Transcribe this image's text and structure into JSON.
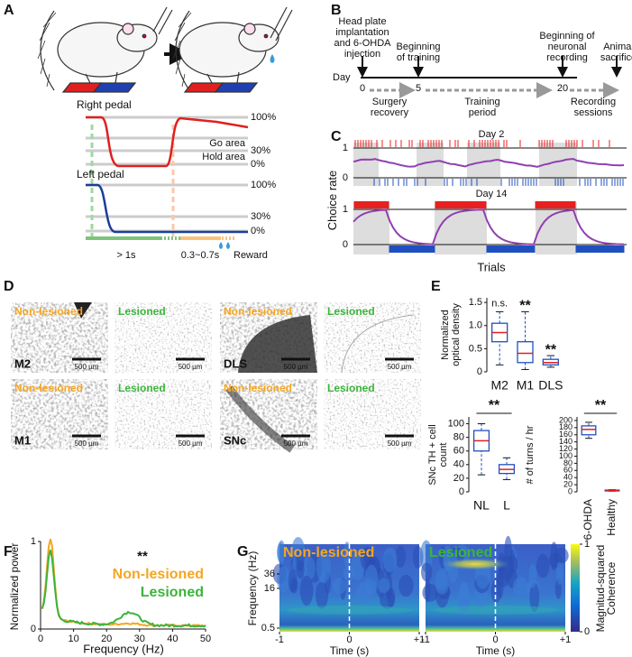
{
  "A": {
    "label": "A",
    "right_pedal": {
      "title": "Right pedal",
      "levels": [
        "100%",
        "30%",
        "0%"
      ],
      "go_area": "Go area",
      "hold_area": "Hold area"
    },
    "left_pedal": {
      "title": "Left pedal",
      "levels": [
        "100%",
        "30%",
        "0%"
      ]
    },
    "hold_time": "> 1s",
    "delay": "0.3~0.7s",
    "reward": "Reward"
  },
  "B": {
    "label": "B",
    "day": "Day",
    "days": [
      0,
      5,
      20
    ],
    "events": [
      "Head plate implantation and 6-OHDA injection",
      "Beginning of training",
      "Beginning of neuronal recording",
      "Animal sacrifice"
    ],
    "periods": [
      "Surgery recovery",
      "Training period",
      "Recording sessions"
    ]
  },
  "C": {
    "label": "C",
    "ylabel": "Choice rate",
    "xlabel": "Trials",
    "sessions": [
      {
        "title": "Day 2",
        "yticks": [
          1,
          0
        ]
      },
      {
        "title": "Day 14",
        "yticks": [
          1,
          0
        ]
      }
    ]
  },
  "D": {
    "label": "D",
    "images": [
      {
        "condition": "Non-lesioned",
        "region": "M2",
        "scale_bar": "500 µm"
      },
      {
        "condition": "Lesioned",
        "scale_bar": "500 µm"
      },
      {
        "condition": "Non-lesioned",
        "region": "DLS",
        "scale_bar": "500 µm"
      },
      {
        "condition": "Lesioned",
        "scale_bar": "500 µm"
      },
      {
        "condition": "Non-lesioned",
        "region": "M1",
        "scale_bar": "500 µm"
      },
      {
        "condition": "Lesioned",
        "scale_bar": "500 µm"
      },
      {
        "condition": "Non-lesioned",
        "region": "SNc",
        "scale_bar": "500 µm"
      },
      {
        "condition": "Lesioned",
        "scale_bar": "500 µm"
      }
    ]
  },
  "E": {
    "label": "E",
    "charts": [
      {
        "type": "box",
        "ylabel": "Normalized optical density",
        "categories": [
          "M2",
          "M1",
          "DLS"
        ],
        "annotations": [
          "n.s.",
          "**",
          "**"
        ],
        "ylim": [
          0,
          1.6
        ],
        "yticks": [
          0,
          0.5,
          {
            "value": 1,
            "label": "1.0"
          },
          1.5
        ],
        "boxes": [
          {
            "min": 0.15,
            "q1": 0.65,
            "median": 0.85,
            "q3": 1.05,
            "max": 1.3
          },
          {
            "min": 0.05,
            "q1": 0.2,
            "median": 0.4,
            "q3": 0.65,
            "max": 1.3
          },
          {
            "min": 0.1,
            "q1": 0.15,
            "median": 0.2,
            "q3": 0.27,
            "max": 0.35
          }
        ]
      },
      {
        "type": "box",
        "ylabel": "SNc TH + cell count",
        "categories": [
          "NL",
          "L"
        ],
        "significance": "**",
        "ylim": [
          0,
          110
        ],
        "yticks": [
          0,
          20,
          40,
          60,
          80,
          100
        ],
        "boxes": [
          {
            "min": 25,
            "q1": 60,
            "median": 75,
            "q3": 90,
            "max": 100
          },
          {
            "min": 18,
            "q1": 27,
            "median": 33,
            "q3": 40,
            "max": 50
          }
        ]
      },
      {
        "type": "box",
        "ylabel": "# of turns / hr",
        "categories": [
          "6-OHDA",
          "Healthy"
        ],
        "significance": "**",
        "ylim": [
          0,
          210
        ],
        "yticks": [
          0,
          20,
          40,
          60,
          80,
          100,
          120,
          140,
          160,
          180,
          200
        ],
        "boxes": [
          {
            "min": 150,
            "q1": 160,
            "median": 175,
            "q3": 185,
            "max": 195
          },
          {
            "min": 2,
            "q1": 3,
            "median": 4,
            "q3": 5,
            "max": 6
          }
        ]
      }
    ]
  },
  "F": {
    "label": "F",
    "ylabel": "Normalized power",
    "xlabel": "Frequency (Hz)",
    "xlim": [
      0,
      50
    ],
    "xticks": [
      0,
      10,
      20,
      30,
      40,
      50
    ],
    "ylim": [
      0,
      1
    ],
    "yticks": [
      0,
      1
    ],
    "series": [
      {
        "name": "Non-lesioned",
        "color": "#f5a623"
      },
      {
        "name": "Lesioned",
        "color": "#3cb43c"
      }
    ],
    "annotation": "**"
  },
  "G": {
    "label": "G",
    "maps": [
      {
        "title": "Non-lesioned",
        "color": "#f5a623"
      },
      {
        "title": "Lesioned",
        "color": "#3cb43c"
      }
    ],
    "ylabel": "Frequency (Hz)",
    "xlabel": "Time (s)",
    "yticks": [
      36,
      16,
      0.5
    ],
    "xlim": [
      -1,
      1
    ],
    "xticks": [
      -1,
      0,
      {
        "value": 1,
        "label": "+1"
      }
    ],
    "colorbar": {
      "label": "Magnitud-squared Coherence",
      "ticks": [
        0,
        1
      ]
    }
  }
}
